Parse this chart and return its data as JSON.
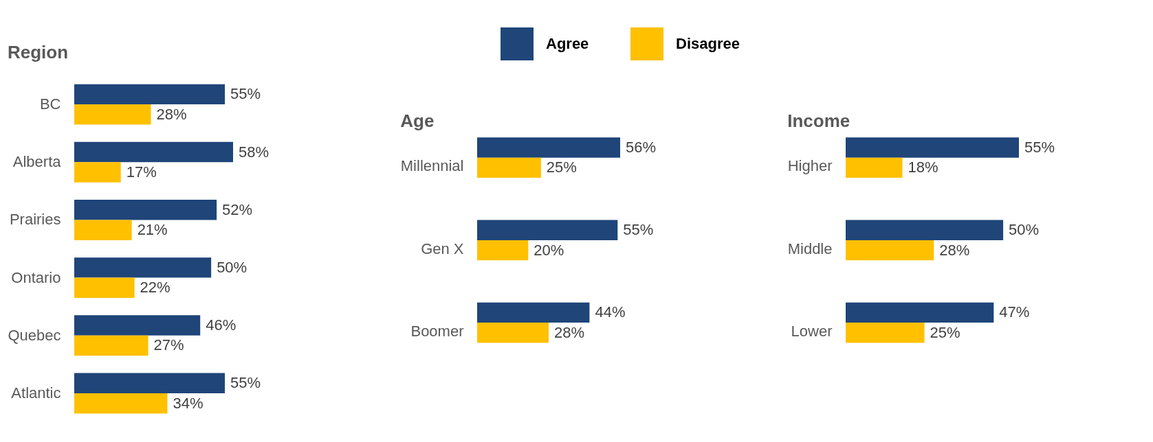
{
  "chart_data": [
    {
      "type": "bar",
      "orientation": "horizontal",
      "title": "Region",
      "categories": [
        "BC",
        "Alberta",
        "Prairies",
        "Ontario",
        "Quebec",
        "Atlantic"
      ],
      "legend": "top",
      "series": [
        {
          "name": "Agree",
          "color": "#1f4579",
          "values": [
            55,
            58,
            52,
            50,
            46,
            55
          ],
          "value_labels": [
            "55%",
            "58%",
            "52%",
            "50%",
            "46%",
            "55%"
          ]
        },
        {
          "name": "Disagree",
          "color": "#ffc000",
          "values": [
            28,
            17,
            21,
            22,
            27,
            34
          ],
          "value_labels": [
            "28%",
            "17%",
            "21%",
            "22%",
            "27%",
            "34%"
          ]
        }
      ]
    },
    {
      "type": "bar",
      "orientation": "horizontal",
      "title": "Age",
      "categories": [
        "Millennial",
        "Gen X",
        "Boomer"
      ],
      "legend": "top",
      "series": [
        {
          "name": "Agree",
          "color": "#1f4579",
          "values": [
            56,
            55,
            44
          ],
          "value_labels": [
            "56%",
            "55%",
            "44%"
          ]
        },
        {
          "name": "Disagree",
          "color": "#ffc000",
          "values": [
            25,
            20,
            28
          ],
          "value_labels": [
            "25%",
            "20%",
            "28%"
          ]
        }
      ]
    },
    {
      "type": "bar",
      "orientation": "horizontal",
      "title": "Income",
      "categories": [
        "Higher",
        "Middle",
        "Lower"
      ],
      "legend": "top",
      "series": [
        {
          "name": "Agree",
          "color": "#1f4579",
          "values": [
            55,
            50,
            47
          ],
          "value_labels": [
            "55%",
            "50%",
            "47%"
          ]
        },
        {
          "name": "Disagree",
          "color": "#ffc000",
          "values": [
            18,
            28,
            25
          ],
          "value_labels": [
            "18%",
            "28%",
            "25%"
          ]
        }
      ]
    }
  ]
}
